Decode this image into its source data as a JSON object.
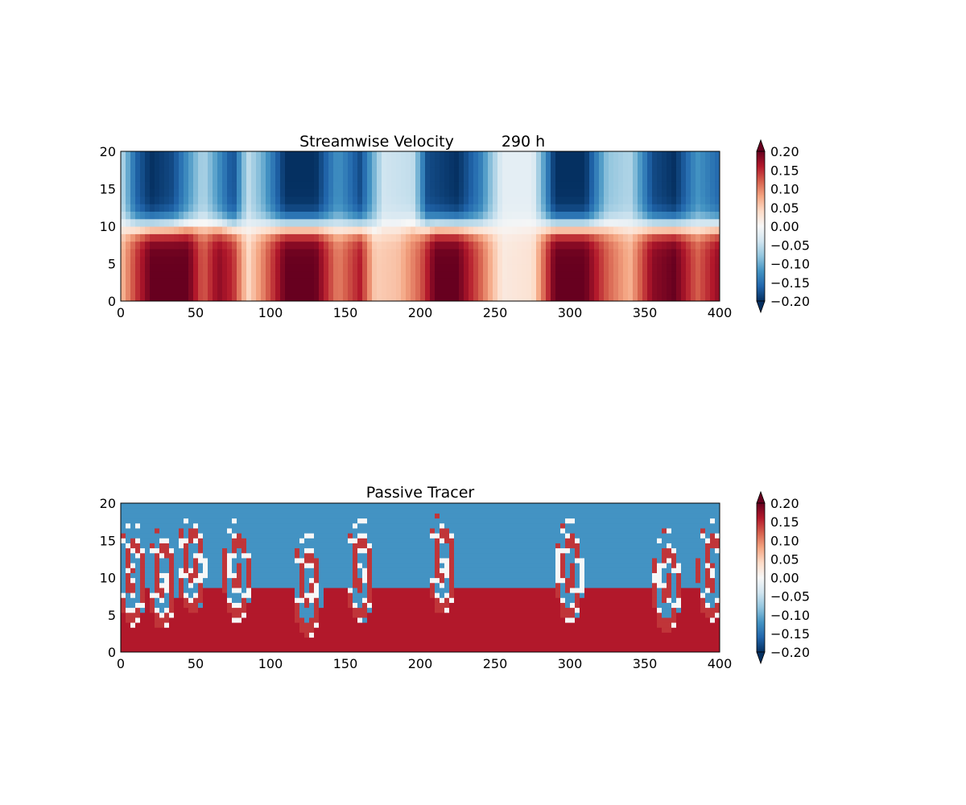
{
  "chart_data": [
    {
      "type": "heatmap",
      "title": "Streamwise Velocity",
      "time_label": "290 h",
      "xlim": [
        0,
        400
      ],
      "ylim": [
        0,
        20
      ],
      "xticks": [
        "0",
        "50",
        "100",
        "150",
        "200",
        "250",
        "300",
        "350",
        "400"
      ],
      "yticks": [
        "0",
        "5",
        "10",
        "15",
        "20"
      ],
      "colorbar": {
        "ticks": [
          "0.20",
          "0.15",
          "0.10",
          "0.05",
          "0.00",
          "−0.05",
          "−0.10",
          "−0.15",
          "−0.20"
        ],
        "range": [
          -0.2,
          0.2
        ],
        "extend": "both"
      },
      "field": {
        "interface_y": 10,
        "lower_layer_u": [
          {
            "x": 0,
            "value": 0.06
          },
          {
            "x": 10,
            "value": 0.14
          },
          {
            "x": 20,
            "value": 0.2
          },
          {
            "x": 35,
            "value": 0.2
          },
          {
            "x": 45,
            "value": 0.2
          },
          {
            "x": 55,
            "value": 0.12
          },
          {
            "x": 65,
            "value": 0.18
          },
          {
            "x": 75,
            "value": 0.15
          },
          {
            "x": 85,
            "value": 0.04
          },
          {
            "x": 95,
            "value": 0.1
          },
          {
            "x": 110,
            "value": 0.2
          },
          {
            "x": 130,
            "value": 0.2
          },
          {
            "x": 145,
            "value": 0.1
          },
          {
            "x": 160,
            "value": 0.16
          },
          {
            "x": 170,
            "value": 0.05
          },
          {
            "x": 185,
            "value": 0.06
          },
          {
            "x": 200,
            "value": 0.12
          },
          {
            "x": 210,
            "value": 0.2
          },
          {
            "x": 225,
            "value": 0.2
          },
          {
            "x": 240,
            "value": 0.12
          },
          {
            "x": 255,
            "value": 0.02
          },
          {
            "x": 275,
            "value": 0.03
          },
          {
            "x": 290,
            "value": 0.2
          },
          {
            "x": 310,
            "value": 0.2
          },
          {
            "x": 325,
            "value": 0.12
          },
          {
            "x": 340,
            "value": 0.07
          },
          {
            "x": 355,
            "value": 0.18
          },
          {
            "x": 370,
            "value": 0.2
          },
          {
            "x": 385,
            "value": 0.12
          },
          {
            "x": 400,
            "value": 0.18
          }
        ],
        "upper_layer_u": [
          {
            "x": 0,
            "value": -0.05
          },
          {
            "x": 10,
            "value": -0.16
          },
          {
            "x": 20,
            "value": -0.2
          },
          {
            "x": 35,
            "value": -0.18
          },
          {
            "x": 45,
            "value": -0.12
          },
          {
            "x": 55,
            "value": -0.06
          },
          {
            "x": 65,
            "value": -0.12
          },
          {
            "x": 75,
            "value": -0.18
          },
          {
            "x": 85,
            "value": -0.05
          },
          {
            "x": 95,
            "value": -0.1
          },
          {
            "x": 110,
            "value": -0.2
          },
          {
            "x": 130,
            "value": -0.2
          },
          {
            "x": 145,
            "value": -0.12
          },
          {
            "x": 160,
            "value": -0.18
          },
          {
            "x": 175,
            "value": -0.04
          },
          {
            "x": 195,
            "value": -0.05
          },
          {
            "x": 205,
            "value": -0.18
          },
          {
            "x": 225,
            "value": -0.2
          },
          {
            "x": 240,
            "value": -0.14
          },
          {
            "x": 255,
            "value": -0.02
          },
          {
            "x": 275,
            "value": -0.02
          },
          {
            "x": 290,
            "value": -0.2
          },
          {
            "x": 310,
            "value": -0.2
          },
          {
            "x": 325,
            "value": -0.08
          },
          {
            "x": 340,
            "value": -0.06
          },
          {
            "x": 355,
            "value": -0.18
          },
          {
            "x": 370,
            "value": -0.2
          },
          {
            "x": 385,
            "value": -0.12
          },
          {
            "x": 400,
            "value": -0.16
          }
        ]
      }
    },
    {
      "type": "heatmap",
      "title": "Passive Tracer",
      "xlim": [
        0,
        400
      ],
      "ylim": [
        0,
        20
      ],
      "xticks": [
        "0",
        "50",
        "100",
        "150",
        "200",
        "250",
        "300",
        "350",
        "400"
      ],
      "yticks": [
        "0",
        "5",
        "10",
        "15",
        "20"
      ],
      "colorbar": {
        "ticks": [
          "0.20",
          "0.15",
          "0.10",
          "0.05",
          "0.00",
          "−0.05",
          "−0.10",
          "−0.15",
          "−0.20"
        ],
        "range": [
          -0.2,
          0.2
        ],
        "extend": "both"
      },
      "field": {
        "lower_value": 0.16,
        "upper_value": -0.12,
        "vortex_centers": [
          {
            "x": 8,
            "y": 10.5
          },
          {
            "x": 28,
            "y": 10
          },
          {
            "x": 48,
            "y": 12
          },
          {
            "x": 78,
            "y": 11
          },
          {
            "x": 125,
            "y": 9
          },
          {
            "x": 160,
            "y": 11
          },
          {
            "x": 215,
            "y": 12
          },
          {
            "x": 300,
            "y": 11
          },
          {
            "x": 365,
            "y": 9.5
          },
          {
            "x": 395,
            "y": 11
          }
        ]
      }
    }
  ]
}
